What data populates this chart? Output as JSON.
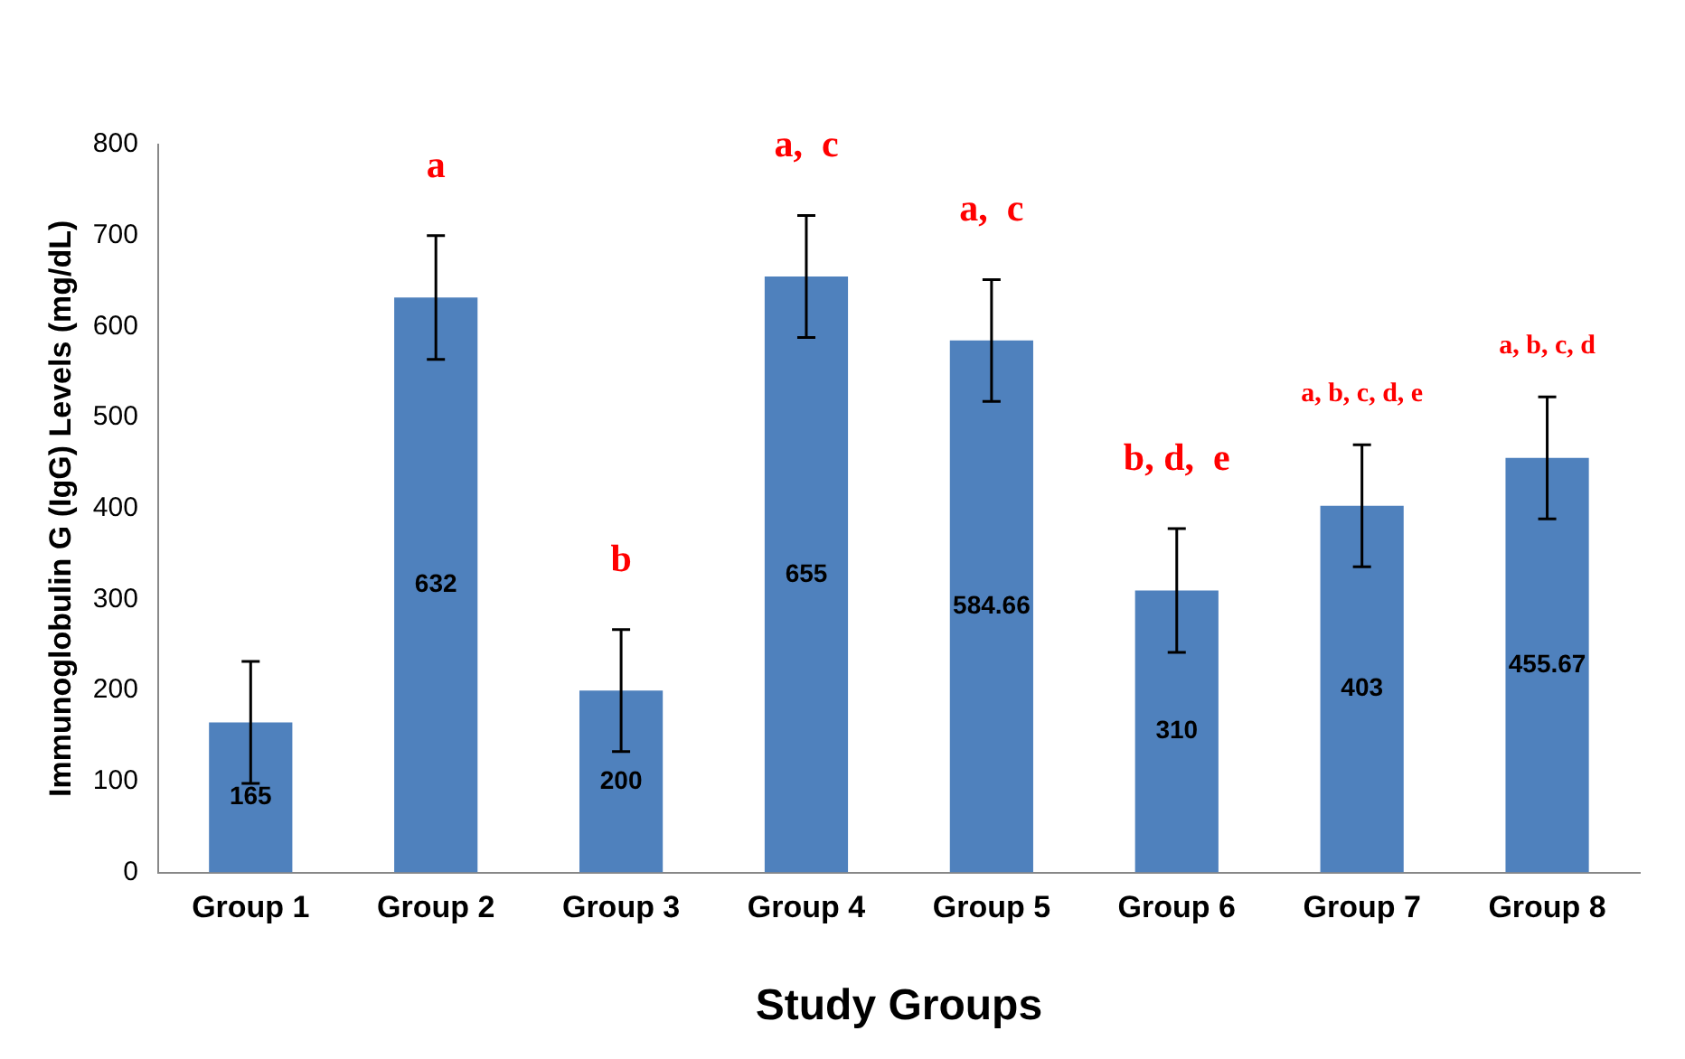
{
  "chart_data": {
    "type": "bar",
    "xlabel": "Study Groups",
    "ylabel": "Immunoglobulin G (IgG) Levels (mg/dL)",
    "categories": [
      "Group 1",
      "Group 2",
      "Group 3",
      "Group 4",
      "Group 5",
      "Group 6",
      "Group 7",
      "Group 8"
    ],
    "values": [
      165,
      632,
      200,
      655,
      584.66,
      310,
      403,
      455.67
    ],
    "errors": [
      67,
      68,
      67,
      67,
      67,
      68,
      67,
      67
    ],
    "color": "#4f81bd",
    "ylim": [
      0,
      800
    ],
    "yticks": [
      0,
      100,
      200,
      300,
      400,
      500,
      600,
      700,
      800
    ],
    "grid": false,
    "legend": false,
    "data_labels": true,
    "annotations": [
      "a",
      "b",
      "a,  c",
      "a,  c",
      "b, d,  e",
      "a, b, c, d, e",
      "a, b, c, d"
    ]
  }
}
